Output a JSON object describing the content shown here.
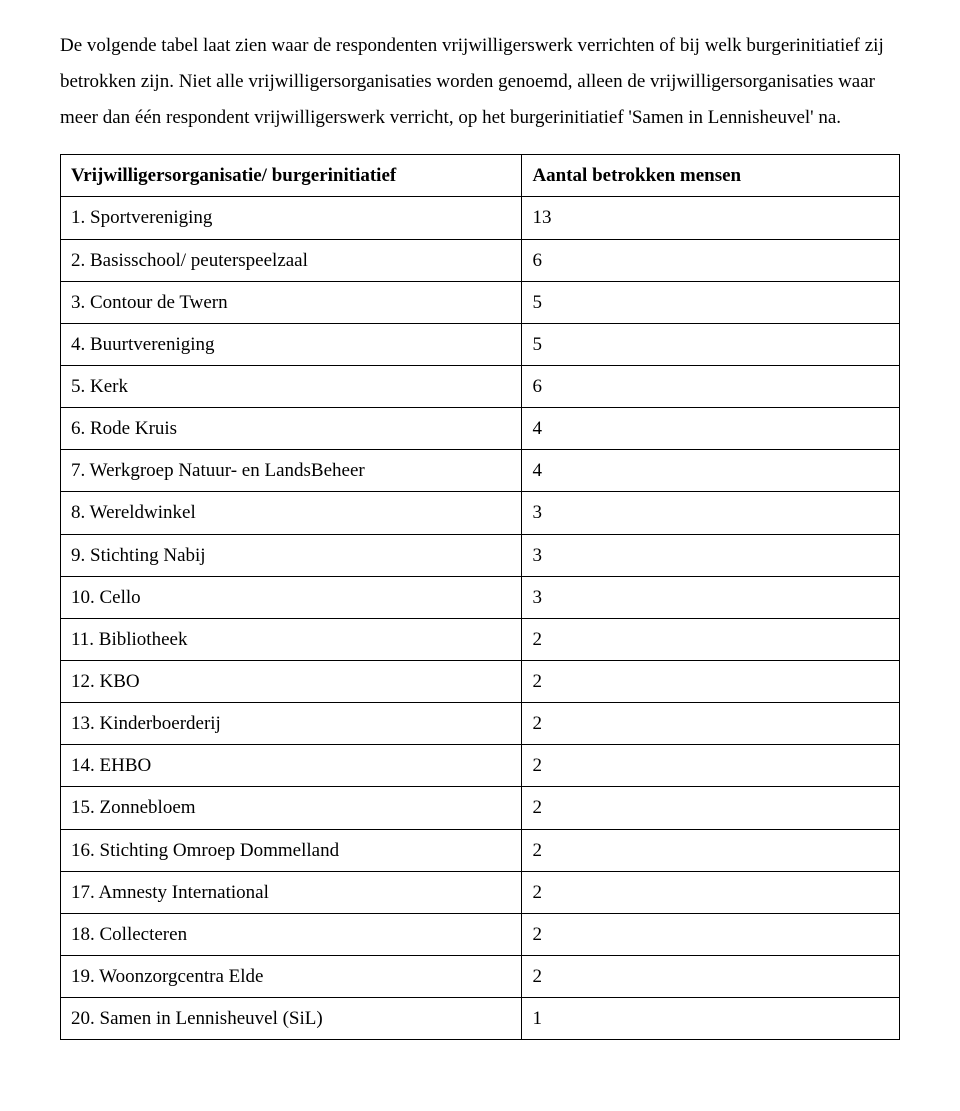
{
  "intro": "De volgende tabel laat zien waar de respondenten vrijwilligerswerk verrichten of bij welk burgerinitiatief zij betrokken zijn. Niet alle vrijwilligersorganisaties worden genoemd, alleen de vrijwilligersorganisaties waar meer dan één respondent vrijwilligerswerk verricht, op het burgerinitiatief 'Samen in Lennisheuvel' na.",
  "table": {
    "header_left": "Vrijwilligersorganisatie/ burgerinitiatief",
    "header_right": "Aantal betrokken mensen",
    "rows": [
      {
        "label": "1. Sportvereniging",
        "value": "13"
      },
      {
        "label": "2. Basisschool/ peuterspeelzaal",
        "value": "6"
      },
      {
        "label": "3. Contour de Twern",
        "value": "5"
      },
      {
        "label": "4. Buurtvereniging",
        "value": "5"
      },
      {
        "label": "5. Kerk",
        "value": "6"
      },
      {
        "label": "6. Rode Kruis",
        "value": "4"
      },
      {
        "label": "7. Werkgroep Natuur- en LandsBeheer",
        "value": "4"
      },
      {
        "label": "8. Wereldwinkel",
        "value": "3"
      },
      {
        "label": "9. Stichting Nabij",
        "value": "3"
      },
      {
        "label": "10. Cello",
        "value": "3"
      },
      {
        "label": "11. Bibliotheek",
        "value": "2"
      },
      {
        "label": "12. KBO",
        "value": "2"
      },
      {
        "label": "13. Kinderboerderij",
        "value": "2"
      },
      {
        "label": "14. EHBO",
        "value": "2"
      },
      {
        "label": "15. Zonnebloem",
        "value": "2"
      },
      {
        "label": "16. Stichting Omroep Dommelland",
        "value": "2"
      },
      {
        "label": "17. Amnesty International",
        "value": "2"
      },
      {
        "label": "18. Collecteren",
        "value": "2"
      },
      {
        "label": "19. Woonzorgcentra Elde",
        "value": "2"
      },
      {
        "label": "20. Samen in Lennisheuvel (SiL)",
        "value": "1"
      }
    ]
  }
}
